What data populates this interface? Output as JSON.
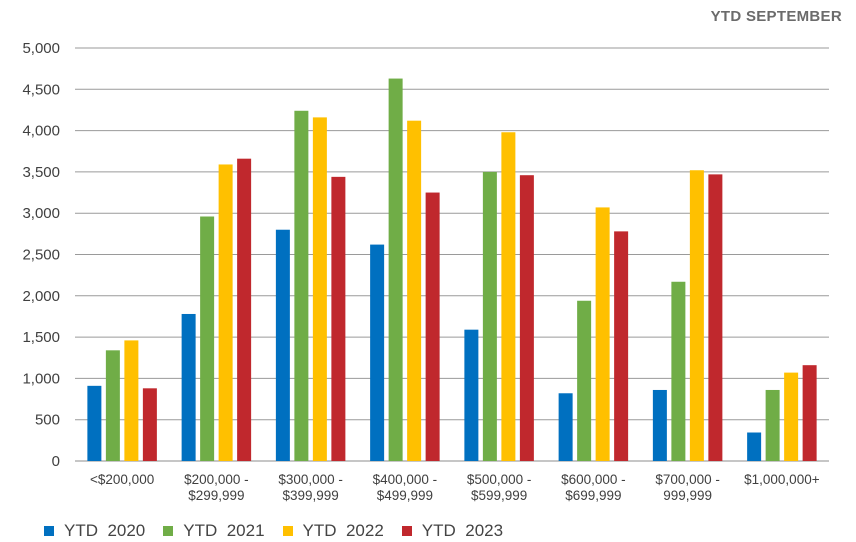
{
  "header": {
    "label": "YTD  SEPTEMBER"
  },
  "chart_data": {
    "type": "bar",
    "title": "",
    "xlabel": "",
    "ylabel": "",
    "ylim": [
      0,
      5000
    ],
    "yticks": [
      "0",
      "500",
      "1,000",
      "1,500",
      "2,000",
      "2,500",
      "3,000",
      "3,500",
      "4,000",
      "4,500",
      "5,000"
    ],
    "grid": true,
    "legend_position": "bottom",
    "categories": [
      [
        "<$200,000"
      ],
      [
        "$200,000 -",
        "$299,999"
      ],
      [
        "$300,000 -",
        "$399,999"
      ],
      [
        "$400,000 -",
        "$499,999"
      ],
      [
        "$500,000 -",
        "$599,999"
      ],
      [
        "$600,000 -",
        "$699,999"
      ],
      [
        "$700,000 -",
        "999,999"
      ],
      [
        "$1,000,000+"
      ]
    ],
    "series": [
      {
        "name": "YTD  2020",
        "color": "#0070c0",
        "values": [
          910,
          1780,
          2800,
          2620,
          1590,
          820,
          860,
          345
        ]
      },
      {
        "name": "YTD  2021",
        "color": "#70ad47",
        "values": [
          1340,
          2960,
          4240,
          4630,
          3500,
          1940,
          2170,
          860
        ]
      },
      {
        "name": "YTD  2022",
        "color": "#ffc000",
        "values": [
          1460,
          3590,
          4160,
          4120,
          3980,
          3070,
          3520,
          1070
        ]
      },
      {
        "name": "YTD  2023",
        "color": "#c0282d",
        "values": [
          880,
          3660,
          3440,
          3250,
          3460,
          2780,
          3470,
          1160
        ]
      }
    ]
  }
}
